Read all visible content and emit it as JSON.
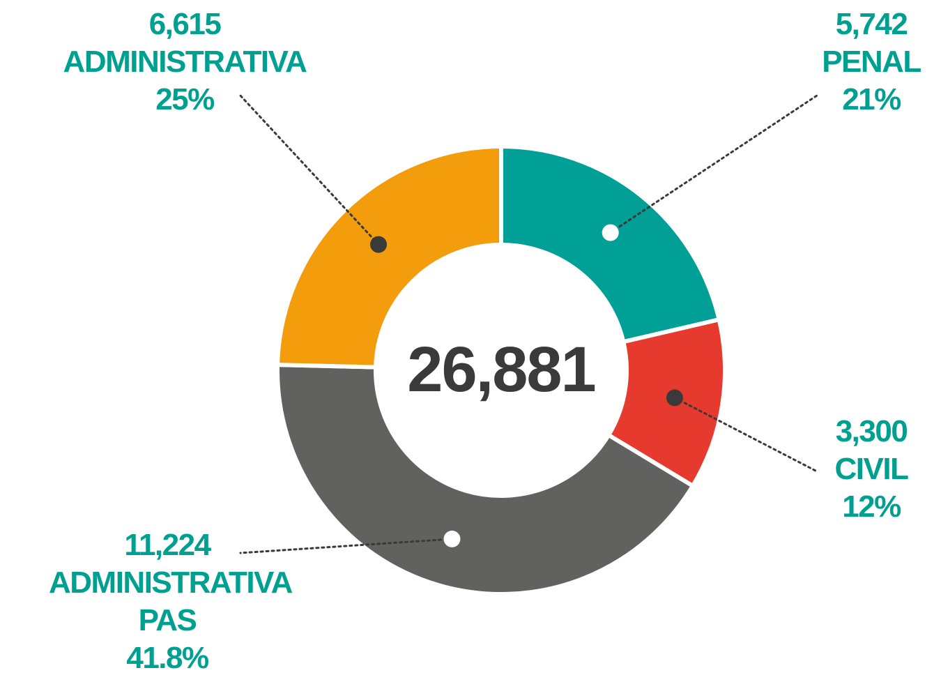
{
  "chart_data": {
    "type": "donut",
    "categories": [
      "PENAL",
      "CIVIL",
      "ADMINISTRATIVA PAS",
      "ADMINISTRATIVA"
    ],
    "values": [
      5742,
      3300,
      11224,
      6615
    ],
    "value_labels": [
      "5,742",
      "3,300",
      "11,224",
      "6,615"
    ],
    "percent_labels": [
      "21%",
      "12%",
      "41.8%",
      "25%"
    ],
    "colors": [
      "#00a096",
      "#e53a2d",
      "#616160",
      "#f39c0c"
    ],
    "marker_colors": [
      "#ffffff",
      "#3a3a3a",
      "#ffffff",
      "#3a3a3a"
    ],
    "center_label": "26,881"
  }
}
